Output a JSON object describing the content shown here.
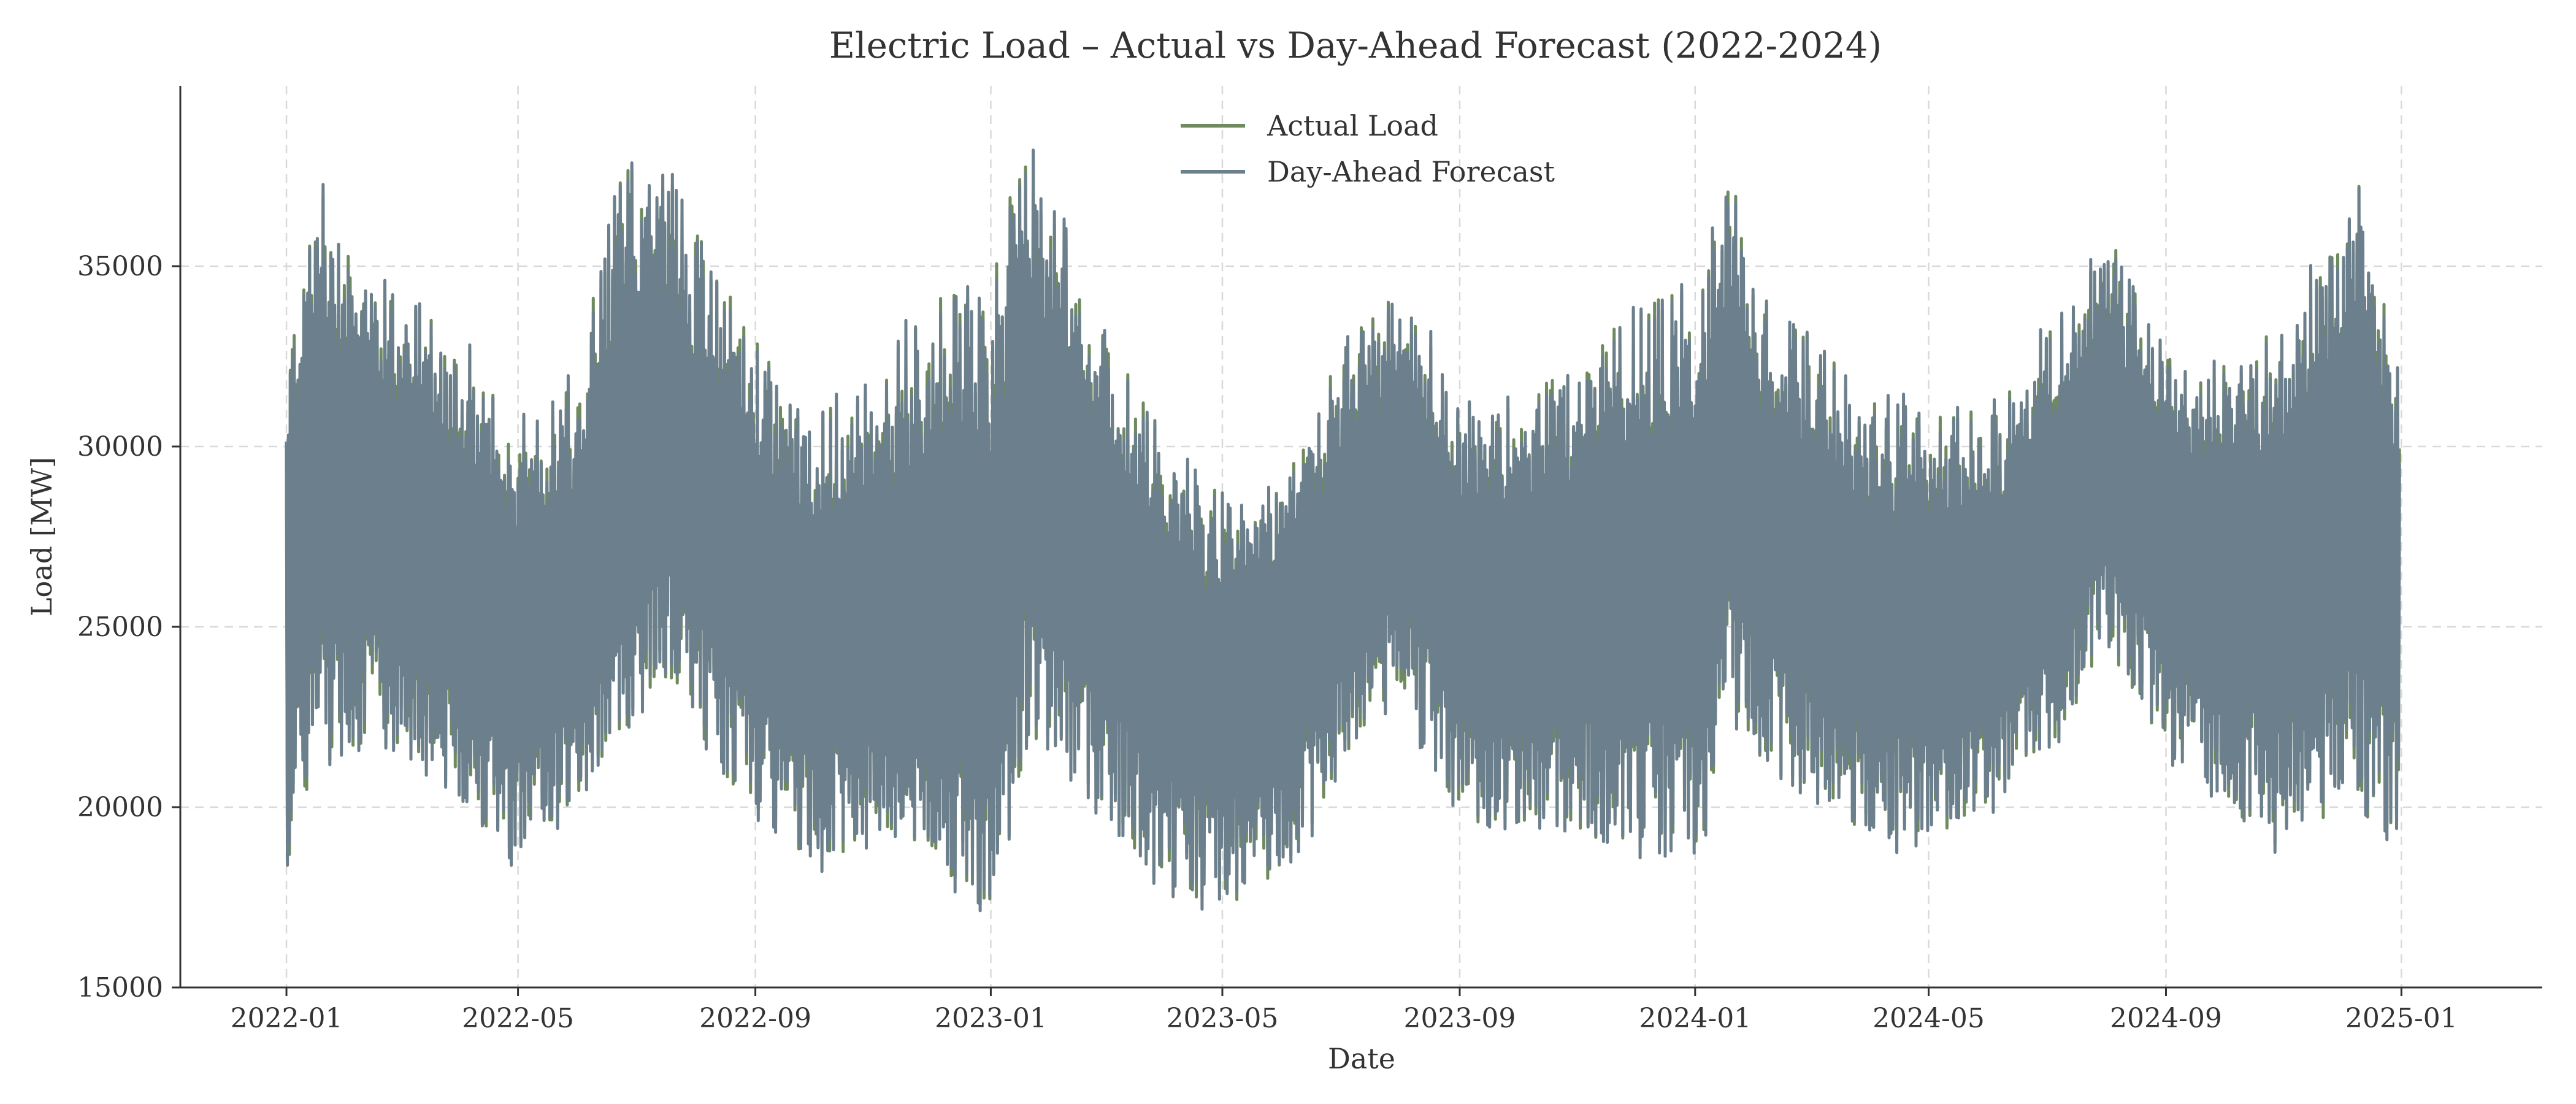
{
  "chart_data": {
    "type": "line",
    "title": "Electric Load – Actual vs Day-Ahead Forecast (2022-2024)",
    "xlabel": "Date",
    "ylabel": "Load [MW]",
    "x_range": [
      "2021-11-07",
      "2025-03-15"
    ],
    "ylim": [
      15000,
      40000
    ],
    "x_ticks": [
      {
        "date": "2022-01-01",
        "label": "2022-01"
      },
      {
        "date": "2022-05-01",
        "label": "2022-05"
      },
      {
        "date": "2022-09-01",
        "label": "2022-09"
      },
      {
        "date": "2023-01-01",
        "label": "2023-01"
      },
      {
        "date": "2023-05-01",
        "label": "2023-05"
      },
      {
        "date": "2023-09-01",
        "label": "2023-09"
      },
      {
        "date": "2024-01-01",
        "label": "2024-01"
      },
      {
        "date": "2024-05-01",
        "label": "2024-05"
      },
      {
        "date": "2024-09-01",
        "label": "2024-09"
      },
      {
        "date": "2025-01-01",
        "label": "2025-01"
      }
    ],
    "y_ticks": [
      15000,
      20000,
      25000,
      30000,
      35000
    ],
    "grid": true,
    "legend_position": "top-center",
    "series": [
      {
        "name": "Actual Load",
        "color": "#6e8a5e",
        "x": [
          "2022-01-01",
          "2022-01-15",
          "2022-02-01",
          "2022-03-01",
          "2022-04-01",
          "2022-05-01",
          "2022-06-01",
          "2022-06-20",
          "2022-07-15",
          "2022-08-01",
          "2022-09-01",
          "2022-10-01",
          "2022-11-01",
          "2022-12-01",
          "2023-01-01",
          "2023-01-20",
          "2023-02-01",
          "2023-03-01",
          "2023-04-01",
          "2023-05-01",
          "2023-06-01",
          "2023-07-10",
          "2023-08-01",
          "2023-09-01",
          "2023-10-01",
          "2023-11-01",
          "2023-12-01",
          "2024-01-01",
          "2024-01-20",
          "2024-02-01",
          "2024-03-01",
          "2024-04-01",
          "2024-05-01",
          "2024-06-01",
          "2024-07-15",
          "2024-08-01",
          "2024-09-01",
          "2024-10-01",
          "2024-11-01",
          "2024-12-10",
          "2024-12-31"
        ],
        "high": [
          32800,
          37700,
          36000,
          34200,
          33500,
          30500,
          31800,
          37500,
          38400,
          36000,
          33000,
          30800,
          32000,
          34000,
          34800,
          38800,
          37000,
          33500,
          30000,
          28800,
          29500,
          33500,
          34500,
          31500,
          31500,
          32500,
          34000,
          34500,
          37900,
          35000,
          33000,
          31500,
          31000,
          31000,
          34500,
          36100,
          33000,
          32500,
          33500,
          37800,
          32800
        ],
        "low": [
          17400,
          20000,
          21000,
          21000,
          19500,
          18000,
          19500,
          21000,
          23000,
          21500,
          19000,
          17800,
          18500,
          18000,
          16100,
          20500,
          20500,
          19000,
          17000,
          16600,
          17500,
          21000,
          22500,
          19000,
          18500,
          18500,
          18200,
          17600,
          21500,
          20500,
          19500,
          18500,
          18500,
          19000,
          22000,
          24000,
          21000,
          19500,
          18000,
          19000,
          17700
        ],
        "base": [
          24500,
          28500,
          28000,
          27000,
          25500,
          24000,
          25000,
          27500,
          29500,
          28000,
          25500,
          24000,
          24500,
          24000,
          23500,
          29500,
          28500,
          26000,
          23500,
          22500,
          23000,
          27000,
          28500,
          25000,
          24500,
          25000,
          25500,
          25000,
          29500,
          27500,
          25500,
          24500,
          24000,
          24500,
          28000,
          29500,
          26500,
          25000,
          25500,
          28500,
          25000
        ]
      },
      {
        "name": "Day-Ahead Forecast",
        "color": "#6b7f8c"
      }
    ]
  }
}
